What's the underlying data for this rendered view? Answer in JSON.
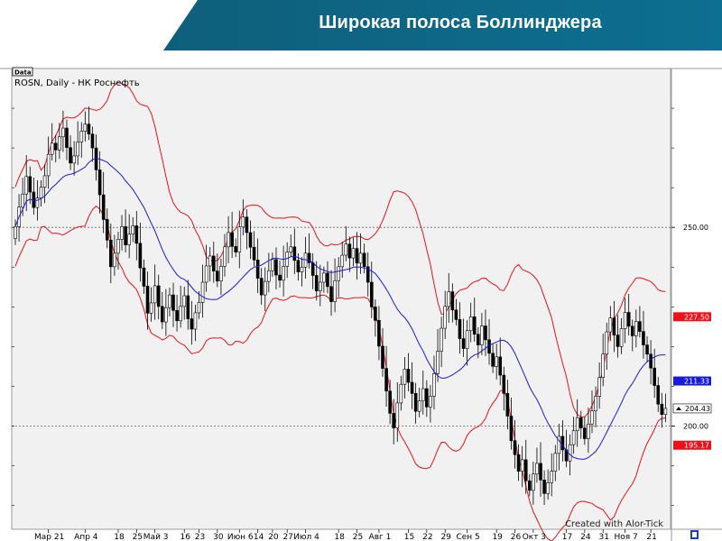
{
  "slide": {
    "title": "Широкая полоса Боллинджера"
  },
  "chart_data": {
    "type": "candlestick",
    "data_tag": "Data",
    "symbol_label": "ROSN, Daily - НК Роснефть",
    "watermark": "Created with Alor-Tick",
    "ylim": [
      174,
      290
    ],
    "y_ticks": [
      {
        "value": 250,
        "label": "250.00"
      },
      {
        "value": 200,
        "label": "200.00"
      }
    ],
    "gridlines": [
      250,
      200
    ],
    "price_markers": [
      {
        "name": "upper-band",
        "value": 227.5,
        "label": "227.50",
        "color": "#e8131b"
      },
      {
        "name": "middle-band",
        "value": 211.33,
        "label": "211.33",
        "color": "#1a1adb"
      },
      {
        "name": "last-price",
        "value": 204.43,
        "label": "204.43",
        "color": "#ffffff"
      },
      {
        "name": "lower-band",
        "value": 195.17,
        "label": "195.17",
        "color": "#e8131b"
      }
    ],
    "x_labels": [
      {
        "label": "Мар 21",
        "index": 9
      },
      {
        "label": "Апр 4",
        "index": 19
      },
      {
        "label": "18",
        "index": 28
      },
      {
        "label": "25",
        "index": 33
      },
      {
        "label": "Май 3",
        "index": 38
      },
      {
        "label": "16",
        "index": 46
      },
      {
        "label": "23",
        "index": 50
      },
      {
        "label": "30",
        "index": 55
      },
      {
        "label": "Июн 6",
        "index": 61
      },
      {
        "label": "14",
        "index": 66
      },
      {
        "label": "20",
        "index": 70
      },
      {
        "label": "27",
        "index": 74
      },
      {
        "label": "Июл 4",
        "index": 79
      },
      {
        "label": "18",
        "index": 88
      },
      {
        "label": "25",
        "index": 93
      },
      {
        "label": "Авг 1",
        "index": 99
      },
      {
        "label": "15",
        "index": 107
      },
      {
        "label": "22",
        "index": 112
      },
      {
        "label": "29",
        "index": 117
      },
      {
        "label": "Сен 5",
        "index": 123
      },
      {
        "label": "19",
        "index": 131
      },
      {
        "label": "26",
        "index": 136
      },
      {
        "label": "Окт 3",
        "index": 141
      },
      {
        "label": "17",
        "index": 150
      },
      {
        "label": "24",
        "index": 155
      },
      {
        "label": "31",
        "index": 160
      },
      {
        "label": "Ноя 7",
        "index": 166
      },
      {
        "label": "21",
        "index": 173
      }
    ],
    "close": [
      250.2,
      255.1,
      258.4,
      262.8,
      258.9,
      255.0,
      257.4,
      260.1,
      263.0,
      268.4,
      271.2,
      269.5,
      272.8,
      275.0,
      270.1,
      266.2,
      268.0,
      271.5,
      274.2,
      276.0,
      273.5,
      270.0,
      264.5,
      258.2,
      252.0,
      246.8,
      240.1,
      243.5,
      247.0,
      250.2,
      245.6,
      248.3,
      250.4,
      246.0,
      239.8,
      235.2,
      228.4,
      231.0,
      235.3,
      230.1,
      226.2,
      229.8,
      233.0,
      229.1,
      226.5,
      230.1,
      232.8,
      227.0,
      224.4,
      228.5,
      231.1,
      236.2,
      240.3,
      242.8,
      239.0,
      236.5,
      240.2,
      245.1,
      248.7,
      245.2,
      243.8,
      250.1,
      252.6,
      248.7,
      245.0,
      241.8,
      237.2,
      233.0,
      236.4,
      239.1,
      241.9,
      238.0,
      236.7,
      240.2,
      243.8,
      245.1,
      241.7,
      238.8,
      240.0,
      243.5,
      241.1,
      237.9,
      234.0,
      236.2,
      238.5,
      235.1,
      231.3,
      236.6,
      240.1,
      243.0,
      245.8,
      242.3,
      244.7,
      241.0,
      243.5,
      240.1,
      236.2,
      230.0,
      226.6,
      220.1,
      214.5,
      208.8,
      203.2,
      199.5,
      205.8,
      210.5,
      214.3,
      211.0,
      208.2,
      203.7,
      206.3,
      209.4,
      204.8,
      207.5,
      213.2,
      218.8,
      224.6,
      230.1,
      233.8,
      229.2,
      226.8,
      222.0,
      219.5,
      224.0,
      227.5,
      223.1,
      220.4,
      225.2,
      221.7,
      218.3,
      215.0,
      217.4,
      212.8,
      208.2,
      202.5,
      196.3,
      192.8,
      188.6,
      191.5,
      186.2,
      183.8,
      187.9,
      190.6,
      186.4,
      183.0,
      185.7,
      188.6,
      193.1,
      197.4,
      194.0,
      191.2,
      195.3,
      198.8,
      202.1,
      199.5,
      196.8,
      200.5,
      203.8,
      207.5,
      212.2,
      218.1,
      223.7,
      227.2,
      222.9,
      220.0,
      224.5,
      228.6,
      225.1,
      222.7,
      226.3,
      223.8,
      220.4,
      218.1,
      214.6,
      210.2,
      205.5,
      202.9,
      204.43
    ]
  }
}
